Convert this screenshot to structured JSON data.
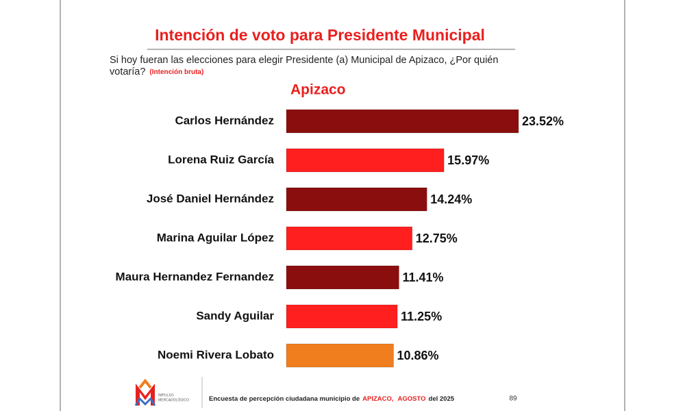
{
  "chart_data": {
    "type": "bar",
    "orientation": "horizontal",
    "title": "Intención de voto para Presidente Municipal",
    "subtitle_lines": [
      "Si hoy fueran las elecciones para elegir Presidente (a)  Municipal de Apizaco, ¿Por quién",
      "votaría?"
    ],
    "subtitle_note": "(Intención bruta)",
    "heading": "Apizaco",
    "categories": [
      "Carlos Hernández",
      "Lorena Ruiz García",
      "José Daniel Hernández",
      "Marina Aguilar López",
      "Maura Hernandez Fernandez",
      "Sandy Aguilar",
      "Noemi Rivera Lobato"
    ],
    "values": [
      23.52,
      15.97,
      14.24,
      12.75,
      11.41,
      11.25,
      10.86
    ],
    "value_labels": [
      "23.52%",
      "15.97%",
      "14.24%",
      "12.75%",
      "11.41%",
      "11.25%",
      "10.86%"
    ],
    "colors": [
      "#8b0e0e",
      "#ff1f1f",
      "#8b0e0e",
      "#ff1f1f",
      "#8b0e0e",
      "#ff1f1f",
      "#f07d1e"
    ]
  },
  "logo_text": [
    "IMPULSO",
    "MERCADOLÓGICO"
  ],
  "footer": [
    "Encuesta de percepción ciudadana municipio de",
    "APIZACO,",
    "AGOSTO",
    "del 2025"
  ],
  "page_number": 89
}
